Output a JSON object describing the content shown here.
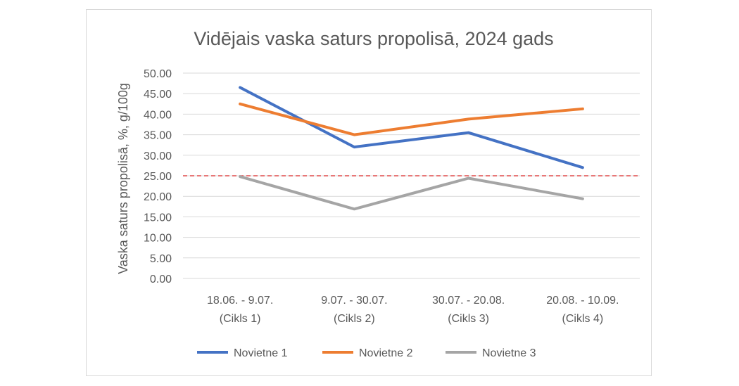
{
  "chart_data": {
    "type": "line",
    "title": "Vidējais vaska saturs propolisā, 2024 gads",
    "xlabel": "",
    "ylabel": "Vaska saturs propolisā, %, g/100g",
    "ylim": [
      0,
      50
    ],
    "y_ticks": [
      "0.00",
      "5.00",
      "10.00",
      "15.00",
      "20.00",
      "25.00",
      "30.00",
      "35.00",
      "40.00",
      "45.00",
      "50.00"
    ],
    "categories": [
      [
        "18.06. - 9.07.",
        "(Cikls 1)"
      ],
      [
        "9.07. - 30.07.",
        "(Cikls 2)"
      ],
      [
        "30.07. - 20.08.",
        "(Cikls 3)"
      ],
      [
        "20.08. - 10.09.",
        "(Cikls 4)"
      ]
    ],
    "series": [
      {
        "name": "Novietne 1",
        "color": "#4472C4",
        "values": [
          46.5,
          32.0,
          35.5,
          27.0
        ]
      },
      {
        "name": "Novietne 2",
        "color": "#ED7D31",
        "values": [
          42.5,
          35.0,
          38.8,
          41.3
        ]
      },
      {
        "name": "Novietne 3",
        "color": "#A5A5A5",
        "values": [
          24.8,
          16.9,
          24.4,
          19.4
        ]
      }
    ],
    "reference_line": {
      "value": 25,
      "color": "#E04B4B",
      "style": "dashed"
    },
    "grid": true,
    "legend": "bottom"
  }
}
